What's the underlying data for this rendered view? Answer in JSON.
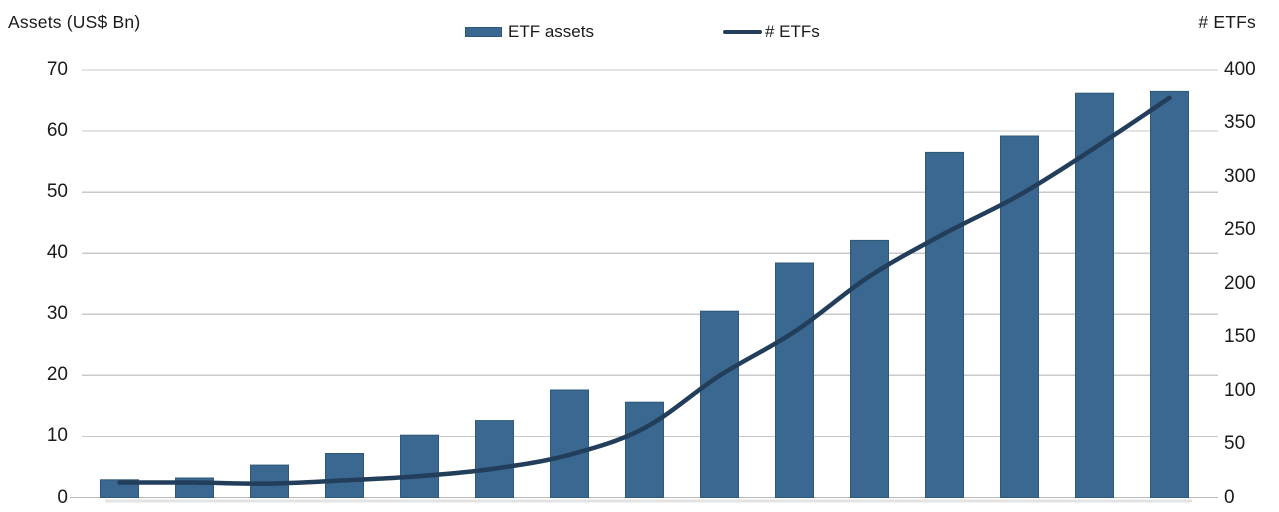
{
  "colors": {
    "bar_fill": "#3a6890",
    "bar_edge": "#2d5878",
    "line": "#223e5b",
    "gridline": "#c9c9c9",
    "baseline": "#b9b9b9",
    "baseline_shadow": "#e3e3e3",
    "text": "#1a1a1a",
    "background": "#ffffff"
  },
  "legend": {
    "position": "top-center"
  },
  "chart_data": {
    "type": "bar",
    "subtype": "bar-with-line-overlay",
    "title": "",
    "n_points": 15,
    "x_axis_labels_visible": false,
    "categories": [
      "",
      "",
      "",
      "",
      "",
      "",
      "",
      "",
      "",
      "",
      "",
      "",
      "",
      "",
      ""
    ],
    "series": [
      {
        "name": "ETF assets",
        "type": "bar",
        "axis": "left",
        "color": "#3a6890",
        "values": [
          2.9,
          3.2,
          5.3,
          7.2,
          10.2,
          12.6,
          17.6,
          15.6,
          30.5,
          38.4,
          42.1,
          56.5,
          59.2,
          66.2,
          66.5
        ]
      },
      {
        "name": "# ETFs",
        "type": "line",
        "axis": "right",
        "smooth": true,
        "color": "#223e5b",
        "values": [
          14,
          14,
          13,
          16,
          20,
          27,
          40,
          65,
          114,
          155,
          207,
          247,
          283,
          327,
          374
        ]
      }
    ],
    "left_axis": {
      "title": "Assets (US$ Bn)",
      "min": 0,
      "max": 70,
      "step": 10,
      "ticks": [
        70,
        60,
        50,
        40,
        30,
        20,
        10,
        0
      ]
    },
    "right_axis": {
      "title": "# ETFs",
      "min": 0,
      "max": 400,
      "step": 50,
      "ticks": [
        400,
        350,
        300,
        250,
        200,
        150,
        100,
        50,
        0
      ]
    },
    "grid": true,
    "legend_position": "top-center"
  }
}
